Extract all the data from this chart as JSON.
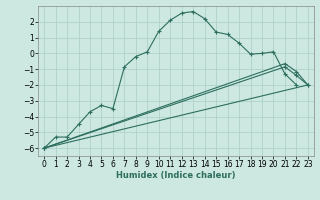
{
  "xlabel": "Humidex (Indice chaleur)",
  "bg_color": "#cce8e0",
  "grid_color": "#aacec6",
  "line_color": "#2d6e5e",
  "xlim": [
    -0.5,
    23.5
  ],
  "ylim": [
    -6.5,
    3.0
  ],
  "xticks": [
    0,
    1,
    2,
    3,
    4,
    5,
    6,
    7,
    8,
    9,
    10,
    11,
    12,
    13,
    14,
    15,
    16,
    17,
    18,
    19,
    20,
    21,
    22,
    23
  ],
  "yticks": [
    -6,
    -5,
    -4,
    -3,
    -2,
    -1,
    0,
    1,
    2
  ],
  "curve1_x": [
    0,
    1,
    2,
    3,
    4,
    5,
    6,
    7,
    8,
    9,
    10,
    11,
    12,
    13,
    14,
    15,
    16,
    17,
    18,
    19,
    20,
    21,
    22
  ],
  "curve1_y": [
    -6.0,
    -5.3,
    -5.3,
    -4.5,
    -3.7,
    -3.3,
    -3.5,
    -0.85,
    -0.2,
    0.1,
    1.4,
    2.1,
    2.55,
    2.65,
    2.2,
    1.35,
    1.2,
    0.65,
    -0.05,
    0.0,
    0.1,
    -1.3,
    -2.0
  ],
  "line2_x": [
    0,
    21,
    22,
    23
  ],
  "line2_y": [
    -6.0,
    -0.85,
    -1.4,
    -2.0
  ],
  "line3_x": [
    0,
    21,
    22,
    23
  ],
  "line3_y": [
    -6.0,
    -0.65,
    -1.15,
    -2.0
  ],
  "line4_x": [
    0,
    23
  ],
  "line4_y": [
    -6.0,
    -2.0
  ],
  "marker_x2": [
    0,
    2,
    5,
    21,
    22,
    23
  ],
  "marker_y2": [
    -6.0,
    -5.3,
    -4.5,
    -0.85,
    -1.4,
    -2.0
  ],
  "marker_x3": [
    0,
    2,
    5,
    21,
    22,
    23
  ],
  "marker_y3": [
    -6.0,
    -5.3,
    -4.6,
    -0.65,
    -1.15,
    -2.0
  ]
}
